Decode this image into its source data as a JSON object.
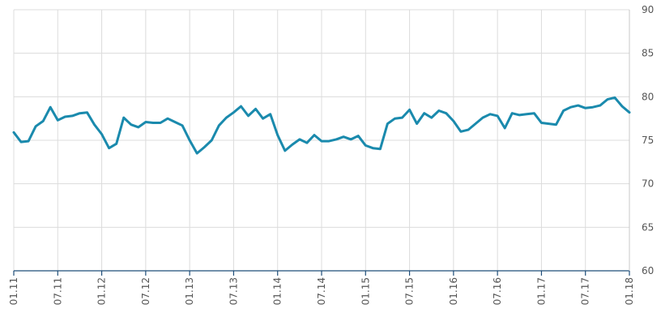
{
  "chart_data": {
    "type": "line",
    "title": "",
    "xlabel": "",
    "ylabel": "",
    "ylim": [
      60,
      90
    ],
    "y_ticks": [
      60,
      65,
      70,
      75,
      80,
      85,
      90
    ],
    "y_axis_side": "right",
    "x_tick_labels": [
      "01.11",
      "07.11",
      "01.12",
      "07.12",
      "01.13",
      "07.13",
      "01.14",
      "07.14",
      "01.15",
      "07.15",
      "01.16",
      "07.16",
      "01.17",
      "07.17",
      "01.18"
    ],
    "grid": true,
    "legend": "none",
    "colors": {
      "series": "#1a8aad",
      "axis": "#1f4e79",
      "grid": "#dcdcdc"
    },
    "series": [
      {
        "x": [
          "2011-01",
          "2011-02",
          "2011-03",
          "2011-04",
          "2011-05",
          "2011-06",
          "2011-07",
          "2011-08",
          "2011-09",
          "2011-10",
          "2011-11",
          "2011-12",
          "2012-01",
          "2012-02",
          "2012-03",
          "2012-04",
          "2012-05",
          "2012-06",
          "2012-07",
          "2012-08",
          "2012-09",
          "2012-10",
          "2012-11",
          "2012-12",
          "2013-01",
          "2013-02",
          "2013-03",
          "2013-04",
          "2013-05",
          "2013-06",
          "2013-07",
          "2013-08",
          "2013-09",
          "2013-10",
          "2013-11",
          "2013-12",
          "2014-01",
          "2014-02",
          "2014-03",
          "2014-04",
          "2014-05",
          "2014-06",
          "2014-07",
          "2014-08",
          "2014-09",
          "2014-10",
          "2014-11",
          "2014-12",
          "2015-01",
          "2015-02",
          "2015-03",
          "2015-04",
          "2015-05",
          "2015-06",
          "2015-07",
          "2015-08",
          "2015-09",
          "2015-10",
          "2015-11",
          "2015-12",
          "2016-01",
          "2016-02",
          "2016-03",
          "2016-04",
          "2016-05",
          "2016-06",
          "2016-07",
          "2016-08",
          "2016-09",
          "2016-10",
          "2016-11",
          "2016-12",
          "2017-01",
          "2017-02",
          "2017-03",
          "2017-04",
          "2017-05",
          "2017-06",
          "2017-07",
          "2017-08",
          "2017-09",
          "2017-10",
          "2017-11",
          "2017-12",
          "2018-01"
        ],
        "values": [
          75.9,
          74.8,
          74.9,
          76.6,
          77.2,
          78.8,
          77.3,
          77.7,
          77.8,
          78.1,
          78.2,
          76.8,
          75.7,
          74.1,
          74.6,
          77.6,
          76.8,
          76.5,
          77.1,
          77.0,
          77.0,
          77.5,
          77.1,
          76.7,
          75.0,
          73.5,
          74.2,
          75.0,
          76.7,
          77.6,
          78.2,
          78.9,
          77.8,
          78.6,
          77.5,
          78.0,
          75.6,
          73.8,
          74.5,
          75.1,
          74.7,
          75.6,
          74.9,
          74.9,
          75.1,
          75.4,
          75.1,
          75.5,
          74.4,
          74.1,
          74.0,
          76.9,
          77.5,
          77.6,
          78.5,
          76.9,
          78.1,
          77.6,
          78.4,
          78.1,
          77.2,
          76.0,
          76.2,
          76.9,
          77.6,
          78.0,
          77.8,
          76.4,
          78.1,
          77.9,
          78.0,
          78.1,
          77.0,
          76.9,
          76.8,
          78.4,
          78.8,
          79.0,
          78.7,
          78.8,
          79.0,
          79.7,
          79.9,
          78.9,
          78.2
        ]
      }
    ]
  }
}
